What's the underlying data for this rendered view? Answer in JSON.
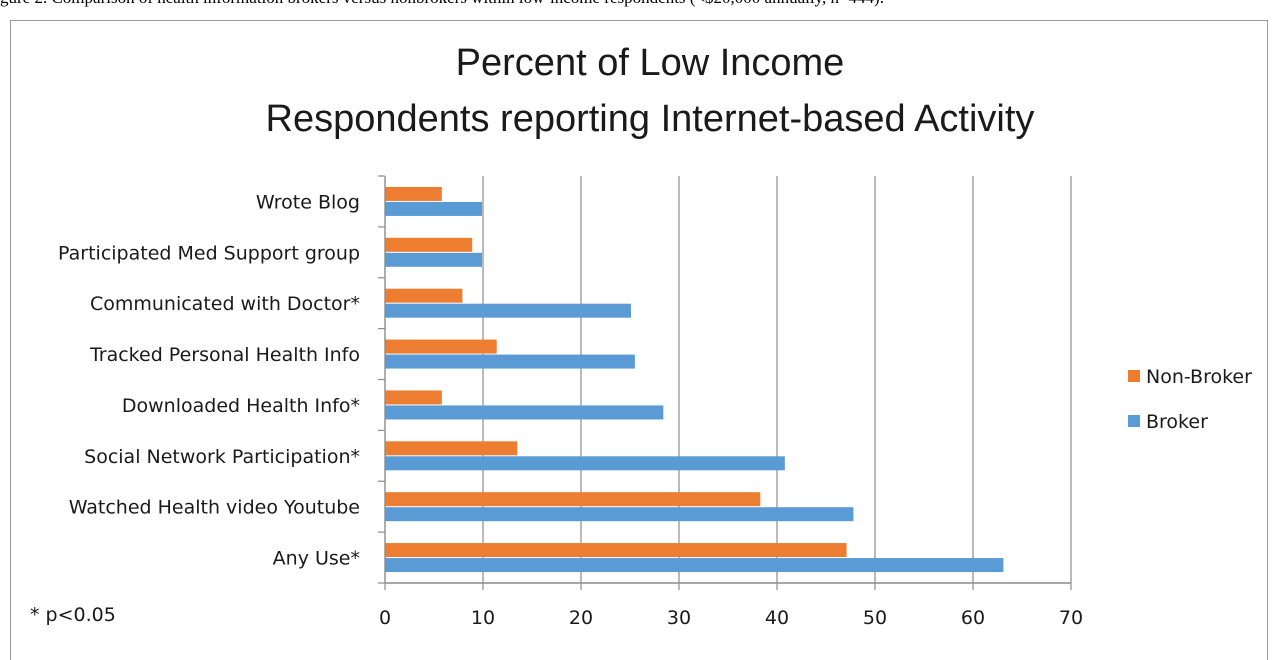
{
  "caption": "gure 2.  Comparison of health information brokers versus nonbrokers within low-income respondents (<$20,000 annually, n=444).",
  "chart_data": {
    "type": "bar",
    "orientation": "horizontal",
    "title_lines": [
      "Percent of Low Income",
      "Respondents reporting Internet-based Activity"
    ],
    "categories": [
      "Wrote Blog",
      "Participated Med Support group",
      "Communicated with Doctor*",
      "Tracked Personal Health Info",
      "Downloaded Health Info*",
      "Social Network Participation*",
      "Watched Health video Youtube",
      "Any Use*"
    ],
    "series": [
      {
        "name": "Non-Broker",
        "color": "#ed7d31",
        "values": [
          5.8,
          8.9,
          7.9,
          11.4,
          5.8,
          13.5,
          38.3,
          47.1
        ]
      },
      {
        "name": "Broker",
        "color": "#5b9bd5",
        "values": [
          9.9,
          9.9,
          25.1,
          25.5,
          28.4,
          40.8,
          47.8,
          63.1
        ]
      }
    ],
    "xlim": [
      0,
      70
    ],
    "xticks": [
      0,
      10,
      20,
      30,
      40,
      50,
      60,
      70
    ],
    "grid": true,
    "legend_position": "right",
    "footnote": "* p<0.05"
  }
}
